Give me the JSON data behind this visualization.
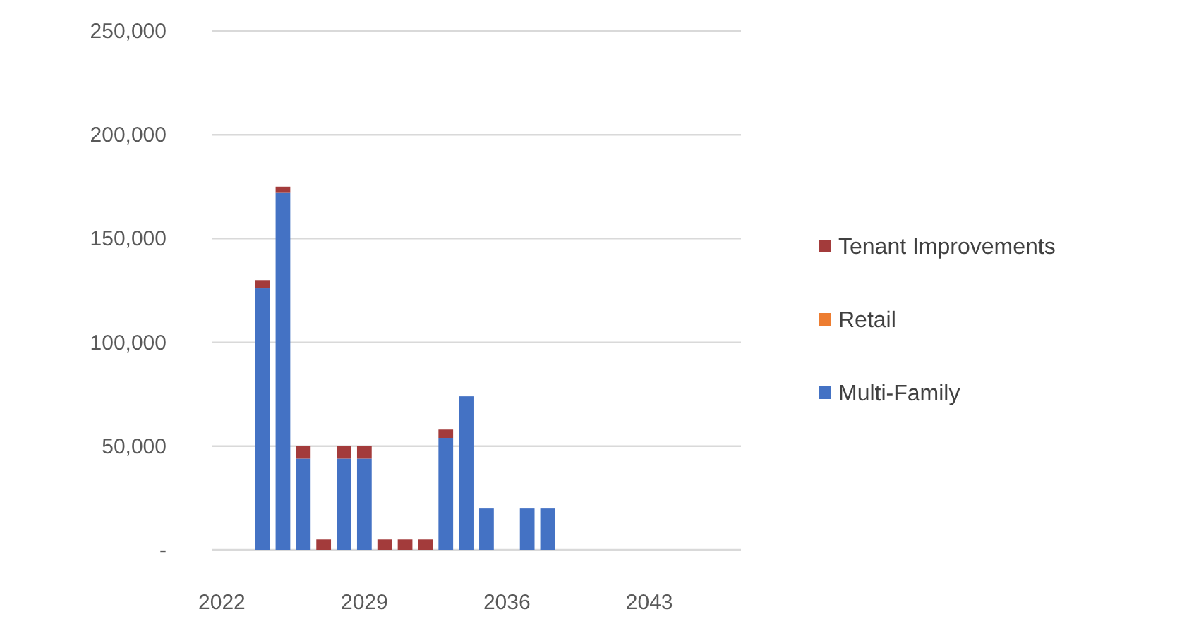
{
  "chart_data": {
    "type": "bar",
    "stacked": true,
    "categories": [
      "2022",
      null,
      null,
      null,
      null,
      null,
      null,
      "2029",
      null,
      null,
      null,
      null,
      null,
      null,
      "2036",
      null,
      null,
      null,
      null,
      null,
      null,
      "2043",
      null,
      null,
      null,
      null
    ],
    "series": [
      {
        "name": "Multi-Family",
        "color": "#4472c4",
        "values": [
          0,
          0,
          126000,
          172000,
          44000,
          0,
          44000,
          44000,
          0,
          0,
          0,
          54000,
          74000,
          20000,
          0,
          20000,
          20000,
          0,
          0,
          0,
          0,
          0,
          0,
          0,
          0,
          0
        ]
      },
      {
        "name": "Retail",
        "color": "#ed7d31",
        "values": [
          0,
          0,
          0,
          0,
          0,
          0,
          0,
          0,
          0,
          0,
          0,
          0,
          0,
          0,
          0,
          0,
          0,
          0,
          0,
          0,
          0,
          0,
          0,
          0,
          0,
          0
        ]
      },
      {
        "name": "Tenant Improvements",
        "color": "#a33b3b",
        "values": [
          0,
          0,
          4000,
          3000,
          6000,
          5000,
          6000,
          6000,
          5000,
          5000,
          5000,
          4000,
          0,
          0,
          0,
          0,
          0,
          0,
          0,
          0,
          0,
          0,
          0,
          0,
          0,
          0
        ]
      }
    ],
    "ylim": [
      0,
      250000
    ],
    "yticks": [
      {
        "value": 0,
        "label": "-"
      },
      {
        "value": 50000,
        "label": "50,000"
      },
      {
        "value": 100000,
        "label": "100,000"
      },
      {
        "value": 150000,
        "label": "150,000"
      },
      {
        "value": 200000,
        "label": "200,000"
      },
      {
        "value": 250000,
        "label": "250,000"
      }
    ],
    "grid": "y",
    "legend": "right"
  }
}
